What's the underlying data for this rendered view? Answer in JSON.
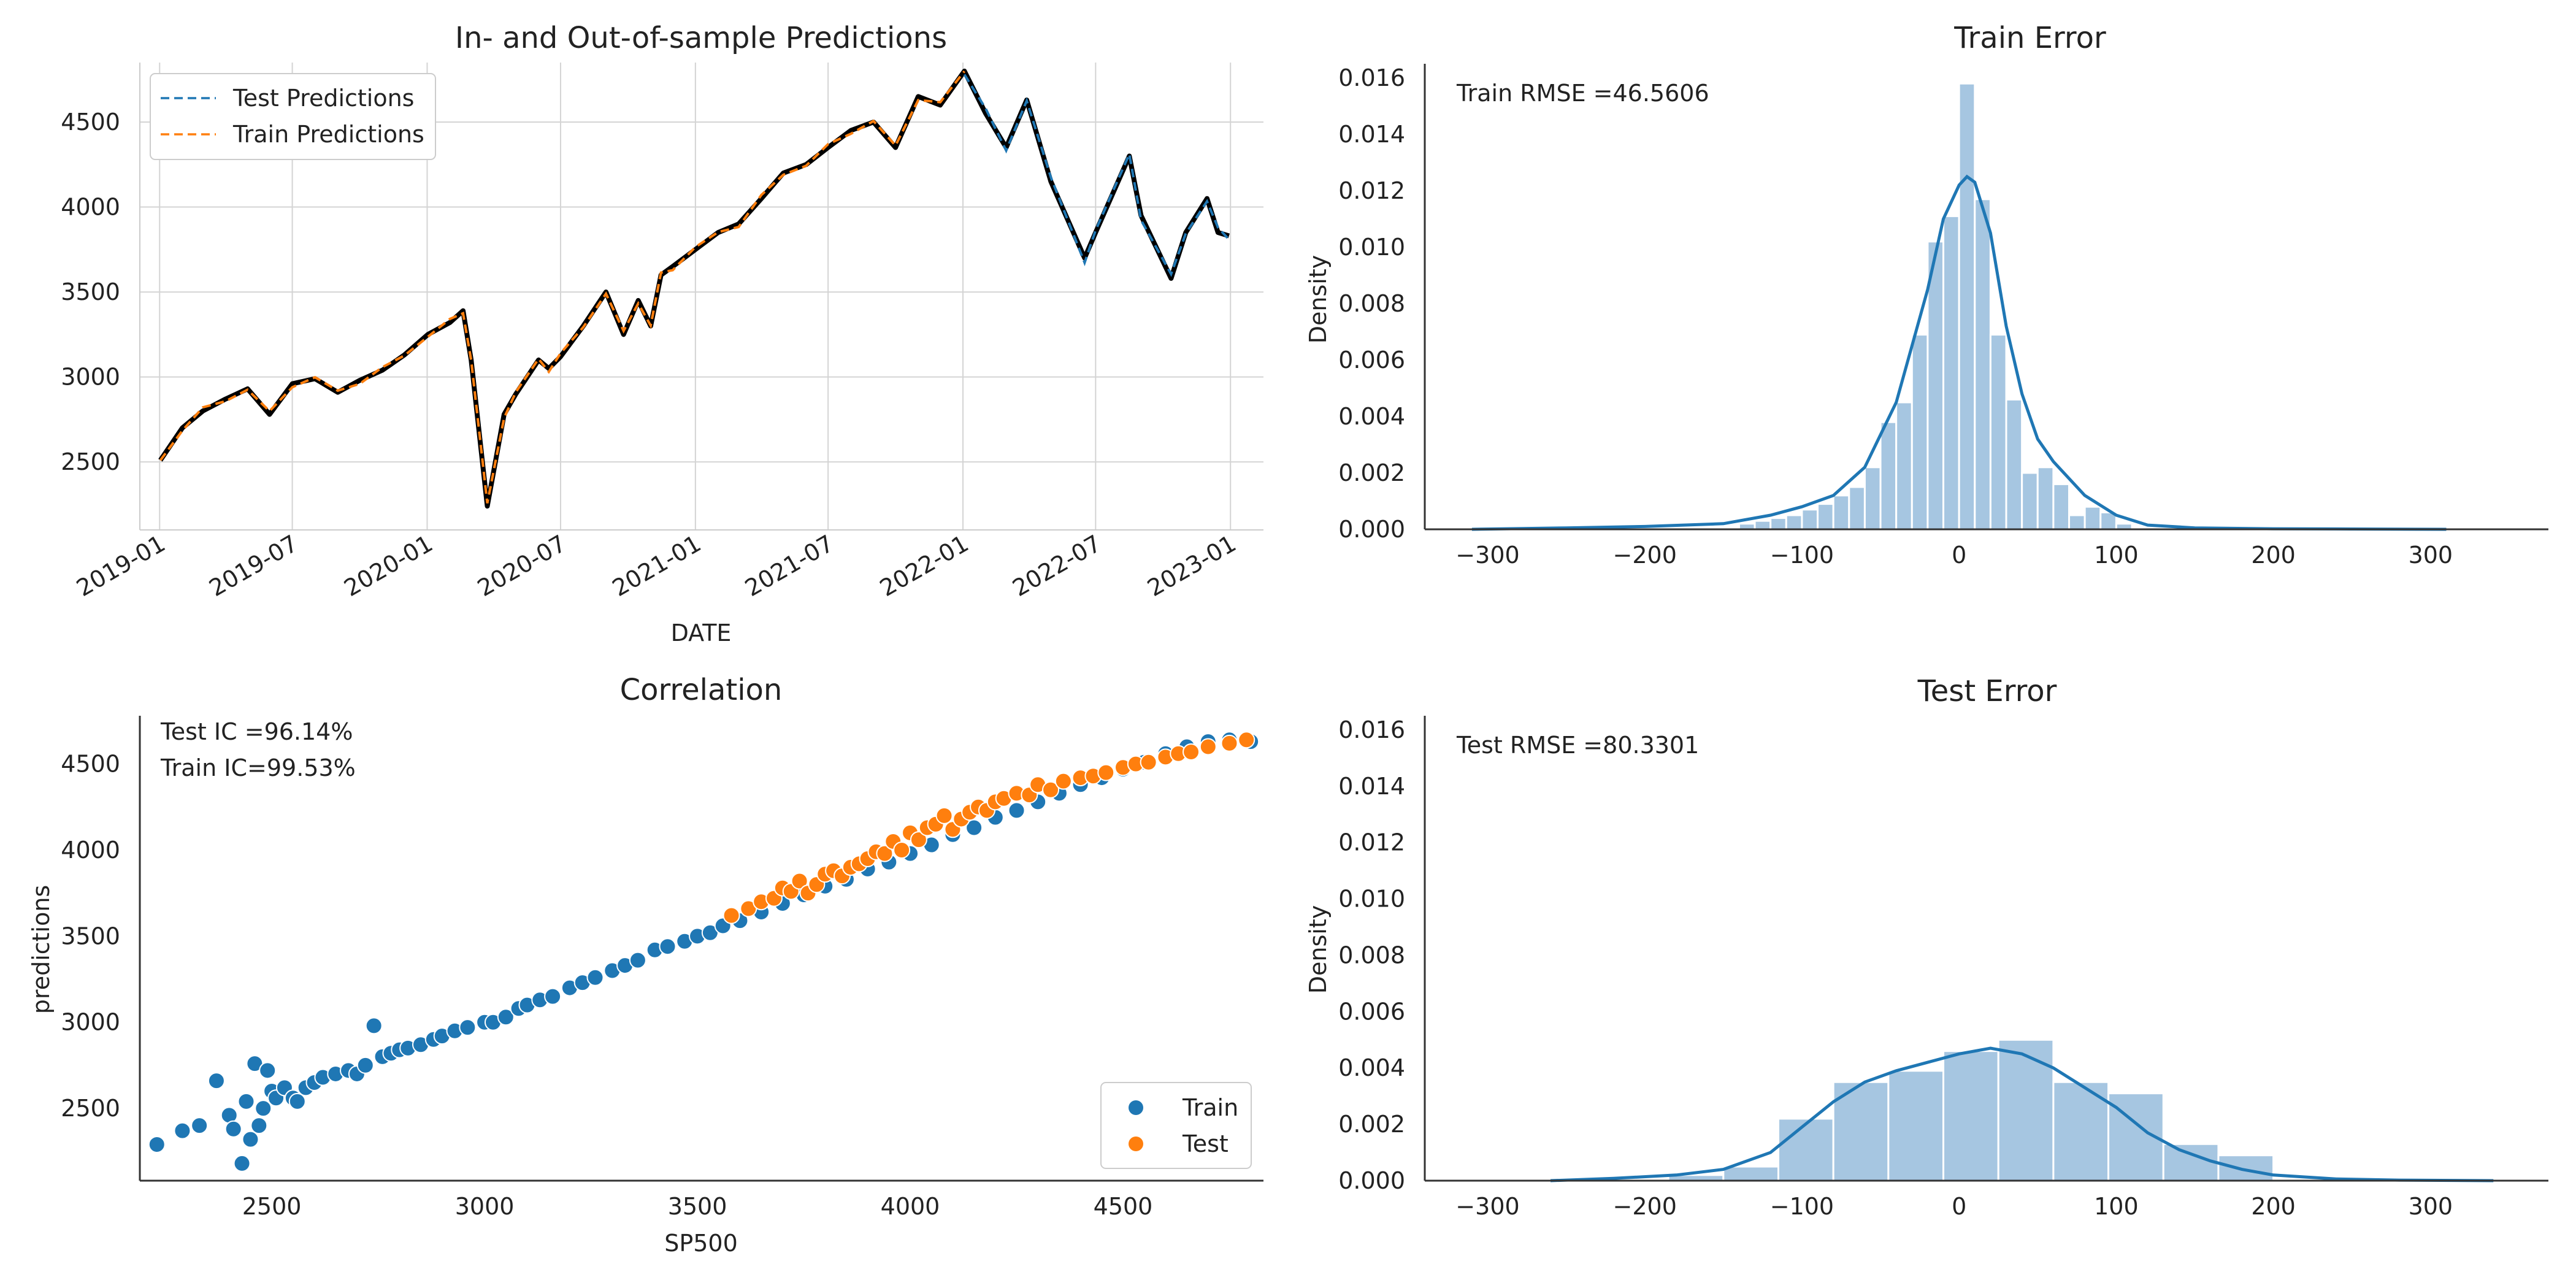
{
  "chart_data": [
    {
      "type": "line",
      "title": "In- and Out-of-sample Predictions",
      "xlabel": "DATE",
      "ylabel": "",
      "grid": true,
      "legend_placement": "top-left",
      "x_ticks": [
        "2019-01",
        "2019-07",
        "2020-01",
        "2020-07",
        "2021-01",
        "2021-07",
        "2022-01",
        "2022-07",
        "2023-01"
      ],
      "y_ticks": [
        2500,
        3000,
        3500,
        4000,
        4500
      ],
      "ylim": [
        2100,
        4850
      ],
      "series": [
        {
          "name": "Test Predictions",
          "color": "#1f77b4",
          "style": "dashed"
        },
        {
          "name": "Train Predictions",
          "color": "#ff7f0e",
          "style": "dashed"
        },
        {
          "color": "#000000",
          "style": "solid"
        }
      ],
      "x": [
        "2019-01-02",
        "2019-02-01",
        "2019-03-01",
        "2019-04-01",
        "2019-05-01",
        "2019-05-31",
        "2019-07-01",
        "2019-08-01",
        "2019-09-01",
        "2019-10-01",
        "2019-11-01",
        "2019-12-01",
        "2020-01-02",
        "2020-02-01",
        "2020-02-19",
        "2020-03-01",
        "2020-03-23",
        "2020-04-15",
        "2020-05-01",
        "2020-06-01",
        "2020-06-15",
        "2020-07-01",
        "2020-08-01",
        "2020-09-01",
        "2020-09-25",
        "2020-10-15",
        "2020-11-01",
        "2020-11-15",
        "2020-12-01",
        "2021-01-01",
        "2021-02-01",
        "2021-03-01",
        "2021-04-01",
        "2021-05-01",
        "2021-06-01",
        "2021-07-01",
        "2021-08-01",
        "2021-09-01",
        "2021-10-01",
        "2021-11-01",
        "2021-12-01",
        "2022-01-03",
        "2022-02-01",
        "2022-03-01",
        "2022-03-29",
        "2022-05-01",
        "2022-06-16",
        "2022-07-01",
        "2022-08-16",
        "2022-09-01",
        "2022-10-12",
        "2022-11-01",
        "2022-11-30",
        "2022-12-15",
        "2022-12-30"
      ],
      "actual": [
        2510,
        2700,
        2800,
        2870,
        2930,
        2780,
        2960,
        2990,
        2910,
        2980,
        3040,
        3130,
        3250,
        3320,
        3390,
        3100,
        2240,
        2780,
        2900,
        3100,
        3050,
        3120,
        3300,
        3500,
        3250,
        3450,
        3300,
        3600,
        3650,
        3750,
        3850,
        3900,
        4050,
        4200,
        4250,
        4350,
        4450,
        4500,
        4350,
        4650,
        4600,
        4800,
        4550,
        4350,
        4630,
        4150,
        3700,
        3850,
        4300,
        3950,
        3580,
        3850,
        4050,
        3850,
        3830
      ],
      "train_predictions_range": [
        "2019-01-02",
        "2022-01-03"
      ],
      "test_predictions_range": [
        "2022-01-03",
        "2022-12-30"
      ]
    },
    {
      "type": "bar",
      "title": "Train Error",
      "xlabel": "",
      "ylabel": "Density",
      "annotation": "Train RMSE =46.5606",
      "x_ticks": [
        -300,
        -200,
        -100,
        0,
        100,
        200,
        300
      ],
      "y_ticks": [
        "0.000",
        "0.002",
        "0.004",
        "0.006",
        "0.008",
        "0.010",
        "0.012",
        "0.014",
        "0.016"
      ],
      "xlim": [
        -340,
        375
      ],
      "ylim": [
        0,
        0.0165
      ],
      "bin_width": 10,
      "bins_left": [
        -140,
        -130,
        -120,
        -110,
        -100,
        -90,
        -80,
        -70,
        -60,
        -50,
        -40,
        -30,
        -20,
        -10,
        0,
        10,
        20,
        30,
        40,
        50,
        60,
        70,
        80,
        90,
        100
      ],
      "values": [
        0.0002,
        0.0003,
        0.0004,
        0.0005,
        0.0007,
        0.0009,
        0.0012,
        0.0015,
        0.0022,
        0.0038,
        0.0045,
        0.0069,
        0.0102,
        0.0111,
        0.0158,
        0.0117,
        0.0069,
        0.0046,
        0.002,
        0.0022,
        0.0016,
        0.0005,
        0.0008,
        0.0006,
        0.0002
      ],
      "kde": {
        "x": [
          -310,
          -250,
          -200,
          -150,
          -120,
          -100,
          -80,
          -60,
          -40,
          -30,
          -20,
          -10,
          0,
          5,
          10,
          20,
          30,
          40,
          50,
          60,
          80,
          100,
          120,
          150,
          200,
          250,
          310
        ],
        "y": [
          0,
          5e-05,
          0.0001,
          0.0002,
          0.0005,
          0.0008,
          0.0012,
          0.0022,
          0.0045,
          0.0065,
          0.0085,
          0.011,
          0.0122,
          0.0125,
          0.0123,
          0.0105,
          0.0072,
          0.0048,
          0.0032,
          0.0024,
          0.0012,
          0.0005,
          0.00015,
          5e-05,
          2e-05,
          1e-05,
          0
        ]
      },
      "color": "#1f77b4"
    },
    {
      "type": "scatter",
      "title": "Correlation",
      "xlabel": "SP500",
      "ylabel": "predictions",
      "annotations": [
        "Test IC =96.14%",
        "Train IC=99.53%"
      ],
      "legend_placement": "bottom-right",
      "x_ticks": [
        2500,
        3000,
        3500,
        4000,
        4500
      ],
      "y_ticks": [
        2500,
        3000,
        3500,
        4000,
        4500
      ],
      "xlim": [
        2190,
        4830
      ],
      "ylim": [
        2080,
        4780
      ],
      "series": [
        {
          "name": "Train",
          "color": "#1f77b4",
          "x": [
            2230,
            2290,
            2330,
            2370,
            2400,
            2410,
            2430,
            2440,
            2450,
            2460,
            2470,
            2480,
            2490,
            2500,
            2510,
            2530,
            2550,
            2560,
            2580,
            2600,
            2620,
            2650,
            2680,
            2700,
            2720,
            2740,
            2760,
            2780,
            2800,
            2820,
            2850,
            2880,
            2900,
            2930,
            2960,
            3000,
            3020,
            3050,
            3080,
            3100,
            3130,
            3160,
            3200,
            3230,
            3260,
            3300,
            3330,
            3360,
            3400,
            3430,
            3470,
            3500,
            3530,
            3560,
            3600,
            3650,
            3700,
            3750,
            3800,
            3850,
            3900,
            3950,
            4000,
            4050,
            4100,
            4150,
            4200,
            4250,
            4300,
            4350,
            4400,
            4450,
            4500,
            4550,
            4600,
            4650,
            4700,
            4750,
            4800
          ],
          "y": [
            2290,
            2370,
            2400,
            2660,
            2460,
            2380,
            2180,
            2540,
            2320,
            2760,
            2400,
            2500,
            2720,
            2600,
            2560,
            2620,
            2560,
            2540,
            2620,
            2650,
            2680,
            2700,
            2720,
            2700,
            2750,
            2980,
            2800,
            2820,
            2840,
            2850,
            2870,
            2900,
            2920,
            2950,
            2970,
            3000,
            3000,
            3030,
            3080,
            3100,
            3130,
            3150,
            3200,
            3230,
            3260,
            3300,
            3330,
            3360,
            3420,
            3440,
            3470,
            3500,
            3520,
            3560,
            3590,
            3640,
            3690,
            3740,
            3790,
            3830,
            3890,
            3930,
            3980,
            4030,
            4090,
            4130,
            4190,
            4230,
            4280,
            4330,
            4380,
            4420,
            4470,
            4510,
            4560,
            4600,
            4630,
            4640,
            4630
          ]
        },
        {
          "name": "Test",
          "color": "#ff7f0e",
          "x": [
            3580,
            3620,
            3650,
            3680,
            3700,
            3720,
            3740,
            3760,
            3780,
            3800,
            3820,
            3840,
            3860,
            3880,
            3900,
            3920,
            3940,
            3960,
            3980,
            4000,
            4020,
            4040,
            4060,
            4080,
            4100,
            4120,
            4140,
            4160,
            4180,
            4200,
            4220,
            4250,
            4280,
            4300,
            4330,
            4360,
            4400,
            4430,
            4460,
            4500,
            4530,
            4560,
            4600,
            4630,
            4660,
            4700,
            4750,
            4790
          ],
          "y": [
            3620,
            3660,
            3700,
            3720,
            3780,
            3760,
            3820,
            3750,
            3800,
            3860,
            3880,
            3850,
            3900,
            3920,
            3950,
            3990,
            3980,
            4050,
            4000,
            4100,
            4060,
            4130,
            4150,
            4200,
            4120,
            4180,
            4220,
            4250,
            4230,
            4280,
            4300,
            4330,
            4320,
            4380,
            4350,
            4400,
            4420,
            4430,
            4450,
            4480,
            4500,
            4510,
            4540,
            4560,
            4570,
            4600,
            4620,
            4640
          ]
        }
      ]
    },
    {
      "type": "bar",
      "title": "Test Error",
      "xlabel": "",
      "ylabel": "Density",
      "annotation": "Test RMSE =80.3301",
      "x_ticks": [
        -300,
        -200,
        -100,
        0,
        100,
        200,
        300
      ],
      "y_ticks": [
        "0.000",
        "0.002",
        "0.004",
        "0.006",
        "0.008",
        "0.010",
        "0.012",
        "0.014",
        "0.016"
      ],
      "xlim": [
        -340,
        375
      ],
      "ylim": [
        0,
        0.0165
      ],
      "bin_width": 35,
      "bins_left": [
        -185,
        -150,
        -115,
        -80,
        -45,
        -10,
        25,
        60,
        95,
        130,
        165
      ],
      "values": [
        0.0002,
        0.0005,
        0.0022,
        0.0035,
        0.0039,
        0.0046,
        0.005,
        0.0035,
        0.0031,
        0.0013,
        0.0009
      ],
      "kde": {
        "x": [
          -260,
          -220,
          -180,
          -150,
          -120,
          -100,
          -80,
          -60,
          -40,
          -20,
          0,
          20,
          40,
          60,
          80,
          100,
          120,
          140,
          160,
          180,
          200,
          240,
          280,
          340
        ],
        "y": [
          0,
          8e-05,
          0.0002,
          0.0004,
          0.001,
          0.0019,
          0.0028,
          0.0035,
          0.0039,
          0.0042,
          0.0045,
          0.0047,
          0.0045,
          0.004,
          0.0033,
          0.0026,
          0.0017,
          0.0011,
          0.0007,
          0.0004,
          0.0002,
          6e-05,
          2e-05,
          0
        ]
      },
      "color": "#1f77b4"
    }
  ]
}
